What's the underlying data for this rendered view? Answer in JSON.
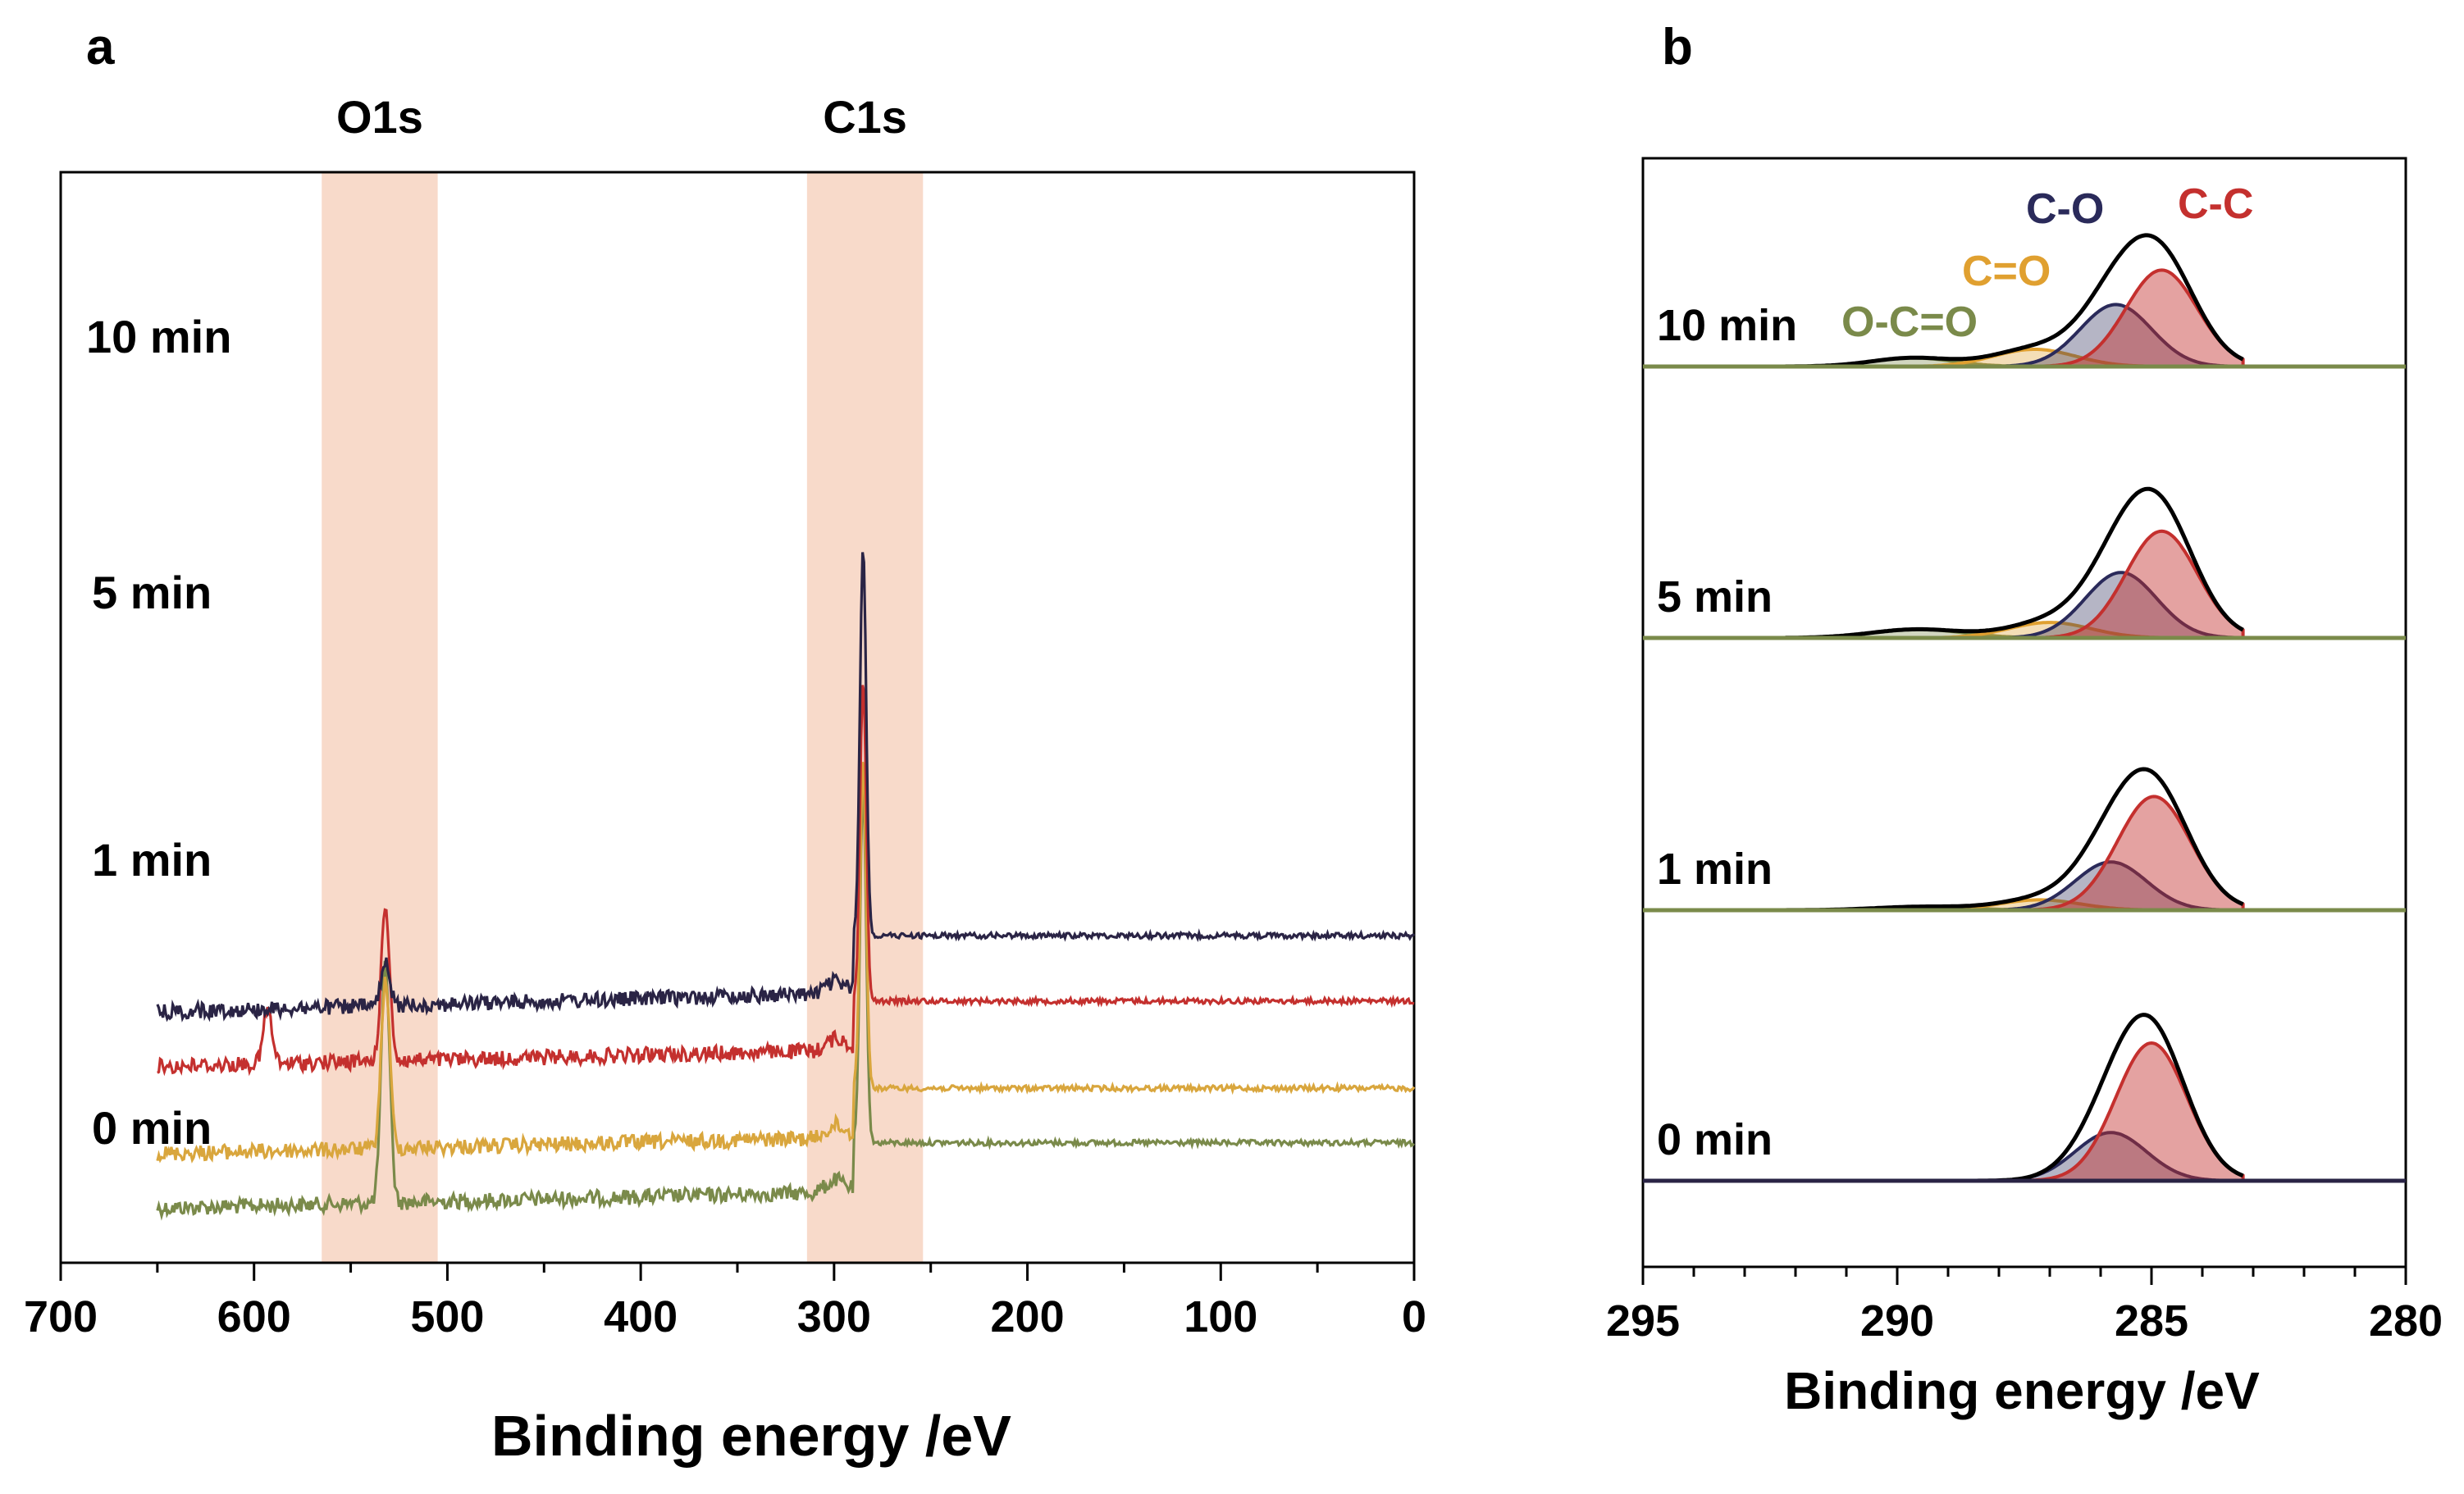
{
  "chart_data": [
    {
      "panel_label": "a",
      "type": "line",
      "title": "",
      "xlabel": "Binding energy /eV",
      "ylabel": "",
      "xlim": [
        700,
        0
      ],
      "x_ticks": [
        "700",
        "600",
        "500",
        "400",
        "300",
        "200",
        "100",
        "0"
      ],
      "highlight_bands": [
        {
          "label": "O1s",
          "from": 565,
          "to": 505
        },
        {
          "label": "C1s",
          "from": 314,
          "to": 254
        }
      ],
      "series": [
        {
          "name": "10 min",
          "color": "#7a8a4a",
          "x_range": [
            650,
            0
          ],
          "baseline_left": 0.95,
          "baseline_right": 0.89,
          "peaks": [
            {
              "x": 532,
              "height": 0.52
            },
            {
              "x": 285,
              "height": 0.78
            }
          ]
        },
        {
          "name": "5 min",
          "color": "#d9a63d",
          "x_range": [
            650,
            0
          ],
          "baseline_left": 0.9,
          "baseline_right": 0.84,
          "peaks": [
            {
              "x": 532,
              "height": 0.37
            },
            {
              "x": 285,
              "height": 0.72
            }
          ]
        },
        {
          "name": "1 min",
          "color": "#c4302e",
          "x_range": [
            650,
            0
          ],
          "baseline_left": 0.82,
          "baseline_right": 0.76,
          "peaks": [
            {
              "x": 532,
              "height": 0.34
            },
            {
              "x": 593,
              "height": 0.12
            },
            {
              "x": 285,
              "height": 0.7
            }
          ]
        },
        {
          "name": "0 min",
          "color": "#2a2445",
          "x_range": [
            650,
            0
          ],
          "baseline_left": 0.77,
          "baseline_right": 0.7,
          "peaks": [
            {
              "x": 532,
              "height": 0.09
            },
            {
              "x": 285,
              "height": 0.85
            }
          ]
        }
      ]
    },
    {
      "panel_label": "b",
      "type": "area",
      "title": "",
      "xlabel": "Binding energy /eV",
      "ylabel": "",
      "xlim": [
        295,
        280
      ],
      "x_ticks": [
        "295",
        "290",
        "285",
        "280"
      ],
      "component_labels": [
        {
          "text": "O-C=O",
          "color": "#7a8a4a"
        },
        {
          "text": "C=O",
          "color": "#e0a030"
        },
        {
          "text": "C-O",
          "color": "#2a2a5a"
        },
        {
          "text": "C-C",
          "color": "#c4302e"
        }
      ],
      "component_colors": {
        "C-C": "#c4302e",
        "C-O": "#2a2a5a",
        "C=O": "#e0a030",
        "O-C=O": "#7a8a4a",
        "Envelope": "#000000"
      },
      "series": [
        {
          "name": "10 min",
          "baseline_color": "#7a8a4a",
          "components": [
            {
              "name": "C-C",
              "center": 284.8,
              "sigma": 0.7,
              "height": 0.56
            },
            {
              "name": "C-O",
              "center": 285.7,
              "sigma": 0.7,
              "height": 0.36
            },
            {
              "name": "C=O",
              "center": 287.3,
              "sigma": 0.8,
              "height": 0.1
            },
            {
              "name": "O-C=O",
              "center": 289.7,
              "sigma": 0.8,
              "height": 0.05
            }
          ]
        },
        {
          "name": "5 min",
          "baseline_color": "#7a8a4a",
          "components": [
            {
              "name": "C-C",
              "center": 284.8,
              "sigma": 0.7,
              "height": 0.62
            },
            {
              "name": "C-O",
              "center": 285.6,
              "sigma": 0.7,
              "height": 0.38
            },
            {
              "name": "C=O",
              "center": 287.0,
              "sigma": 0.8,
              "height": 0.09
            },
            {
              "name": "O-C=O",
              "center": 289.6,
              "sigma": 0.9,
              "height": 0.05
            }
          ]
        },
        {
          "name": "1 min",
          "baseline_color": "#7a8a4a",
          "components": [
            {
              "name": "C-C",
              "center": 284.95,
              "sigma": 0.72,
              "height": 0.66
            },
            {
              "name": "C-O",
              "center": 285.8,
              "sigma": 0.7,
              "height": 0.28
            },
            {
              "name": "C=O",
              "center": 287.2,
              "sigma": 0.8,
              "height": 0.06
            },
            {
              "name": "O-C=O",
              "center": 289.5,
              "sigma": 0.9,
              "height": 0.02
            }
          ]
        },
        {
          "name": "0 min",
          "baseline_color": "#2a2445",
          "components": [
            {
              "name": "C-C",
              "center": 285.0,
              "sigma": 0.7,
              "height": 0.8
            },
            {
              "name": "C-O",
              "center": 285.8,
              "sigma": 0.7,
              "height": 0.28
            }
          ]
        }
      ]
    }
  ]
}
